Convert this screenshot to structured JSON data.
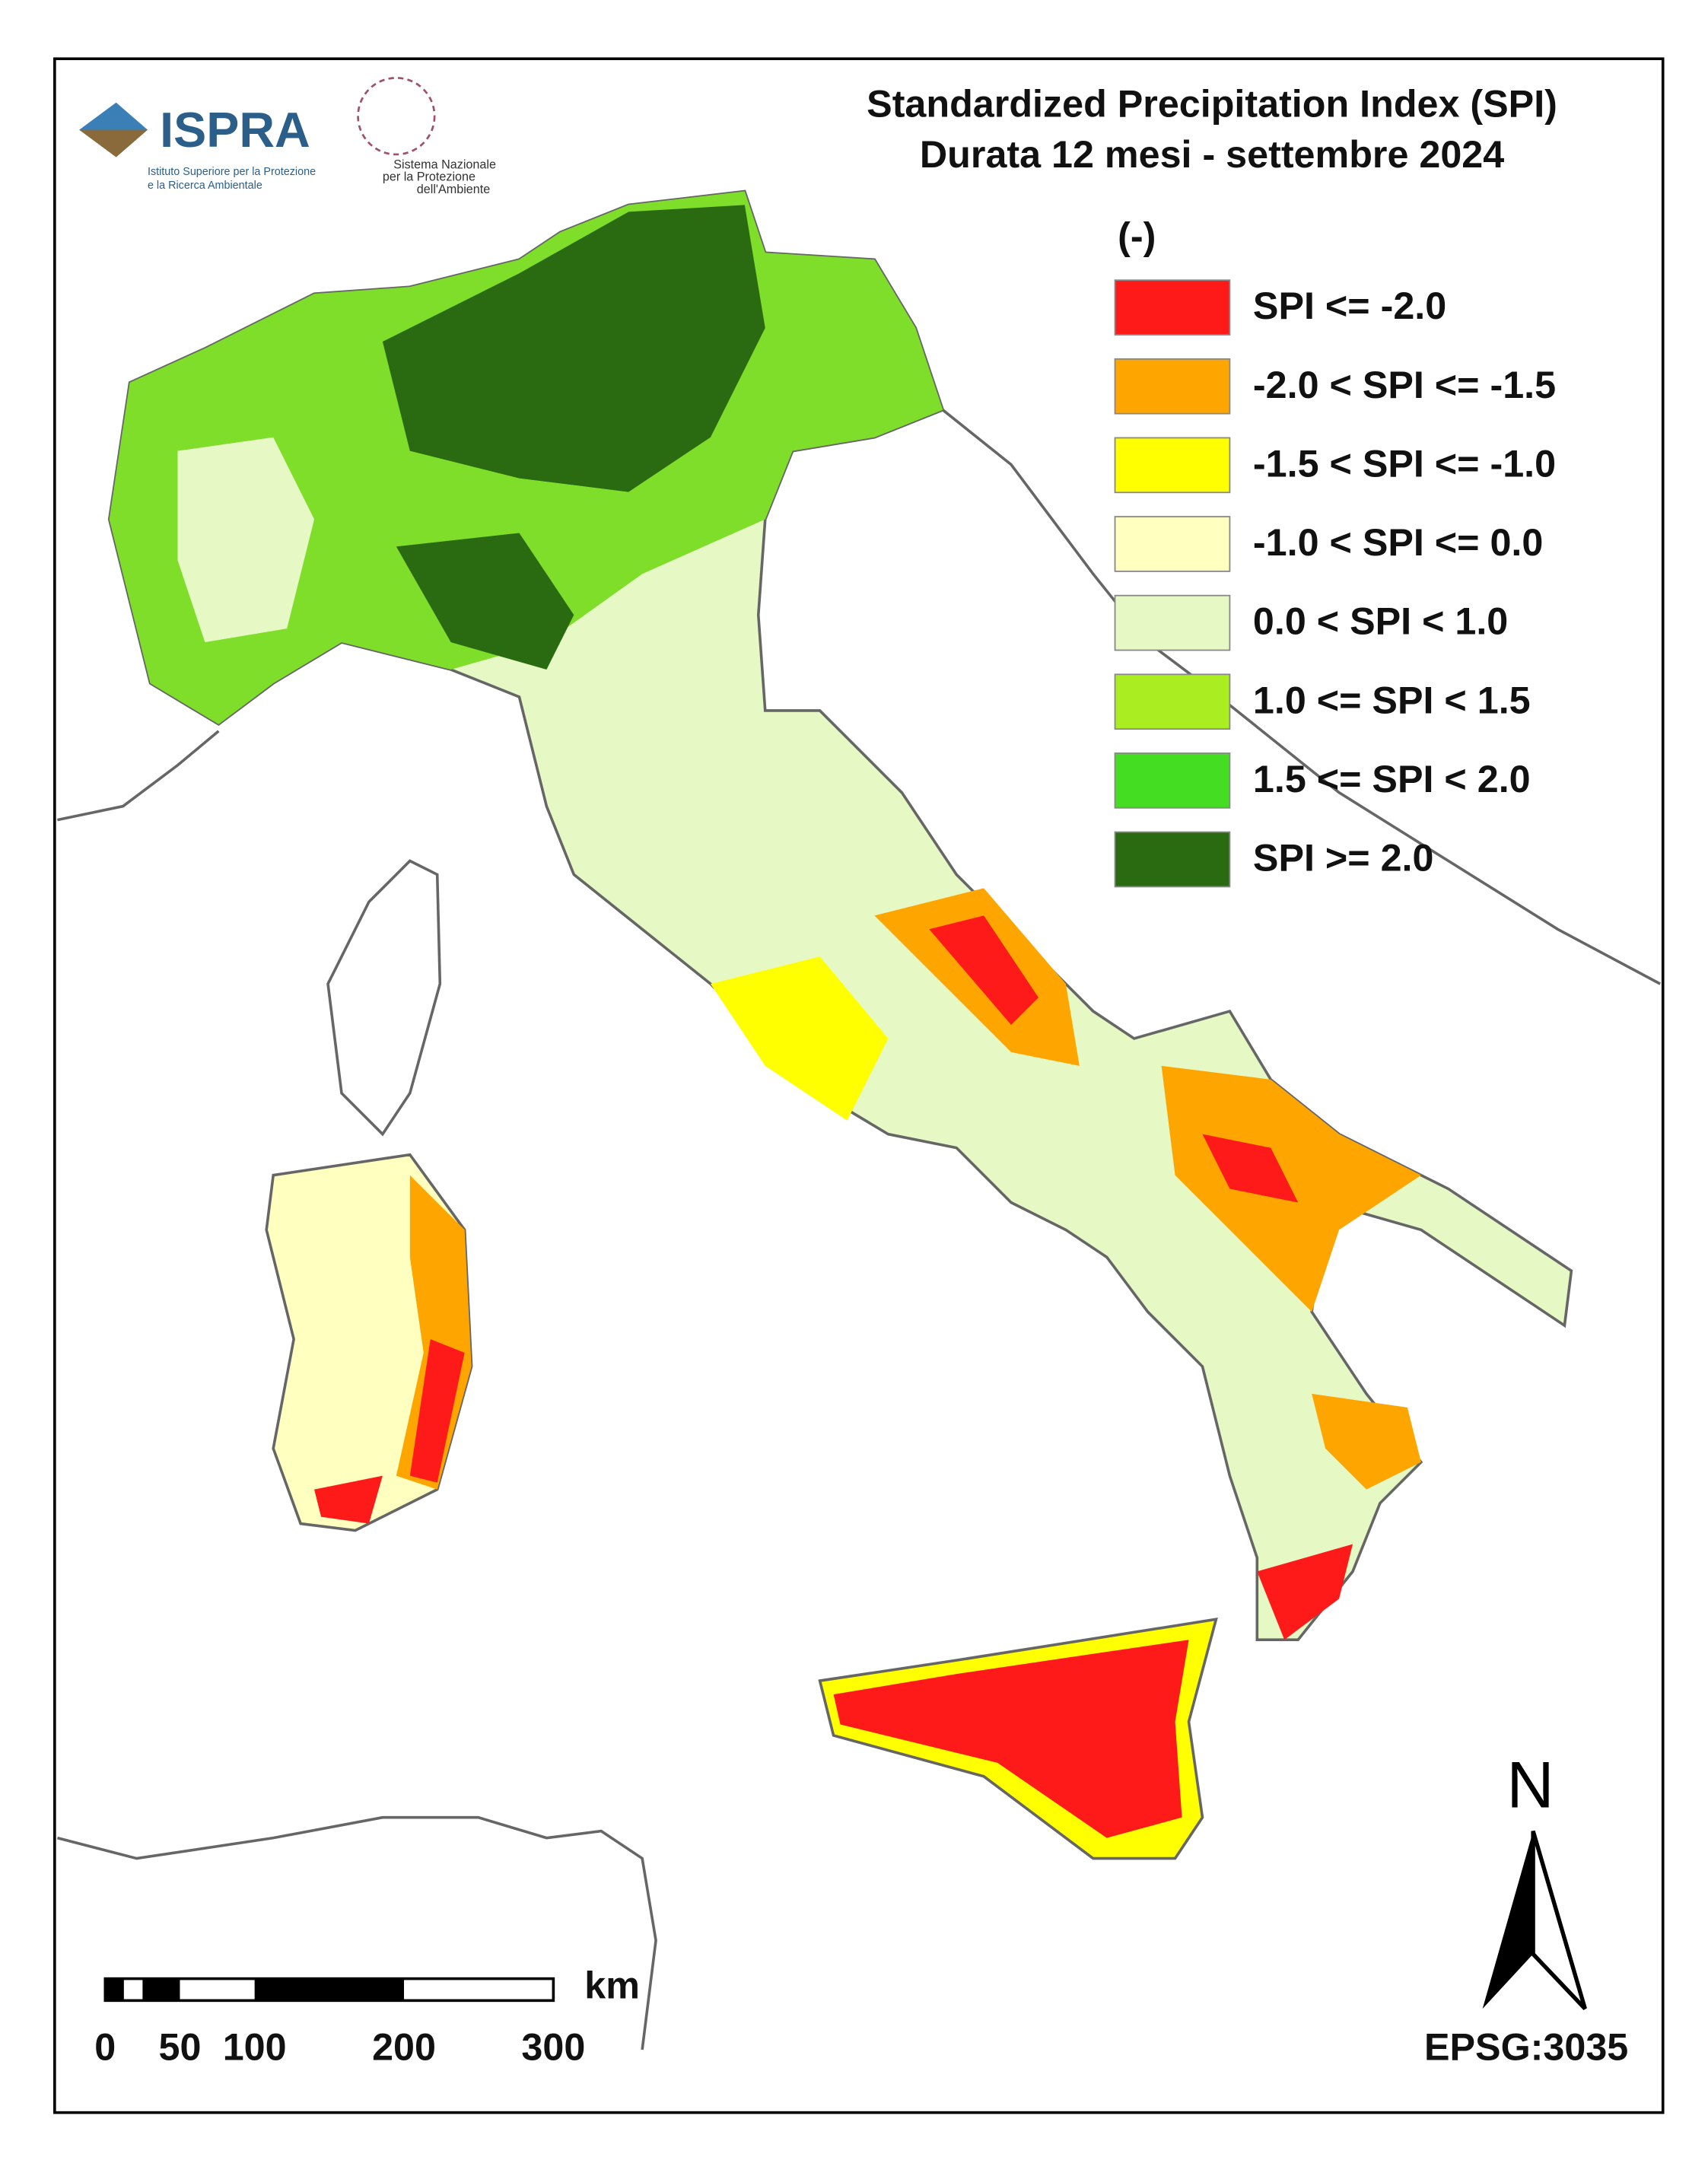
{
  "header": {
    "title_line1": "Standardized Precipitation  Index (SPI)",
    "title_line2": "Durata 12 mesi - settembre 2024"
  },
  "logos": {
    "ispra": "ISPRA",
    "ispra_subtitle": [
      "Istituto Superiore per la Protezione",
      "e la Ricerca Ambientale"
    ],
    "snpa": [
      "Sistema Nazionale",
      "per la Protezione",
      "dell'Ambiente"
    ]
  },
  "legend": {
    "unit": "(-)",
    "items": [
      {
        "label": "SPI <= -2.0",
        "color": "#ff1a1a"
      },
      {
        "label": "-2.0 < SPI <= -1.5",
        "color": "#ffa500"
      },
      {
        "label": "-1.5 < SPI <= -1.0",
        "color": "#ffff00"
      },
      {
        "label": "-1.0 < SPI <= 0.0",
        "color": "#ffffc0"
      },
      {
        "label": "0.0 < SPI < 1.0",
        "color": "#e6f8c4"
      },
      {
        "label": "1.0 <= SPI < 1.5",
        "color": "#aaee22"
      },
      {
        "label": "1.5 <= SPI < 2.0",
        "color": "#44dd22"
      },
      {
        "label": "SPI >= 2.0",
        "color": "#2a6b12"
      }
    ]
  },
  "scale_bar": {
    "unit": "km",
    "labels": [
      0,
      50,
      100,
      200,
      300
    ]
  },
  "north": "N",
  "projection": "EPSG:3035"
}
